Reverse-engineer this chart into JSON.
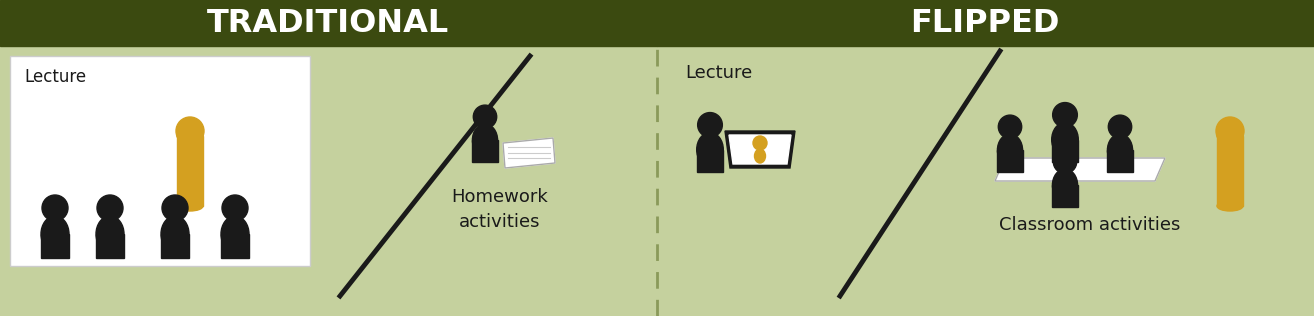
{
  "bg_light_green": "#c5d19e",
  "bg_dark_green": "#3b4a10",
  "gold_color": "#d4a020",
  "black_color": "#1a1a1a",
  "white_color": "#ffffff",
  "dashed_divider_color": "#8a9a5a",
  "title_left": "TRADITIONAL",
  "title_right": "FLIPPED",
  "label_lecture_left": "Lecture",
  "label_homework": "Homework\nactivities",
  "label_lecture_right": "Lecture",
  "label_classroom": "Classroom activities",
  "fig_width": 13.14,
  "fig_height": 3.16,
  "dpi": 100
}
